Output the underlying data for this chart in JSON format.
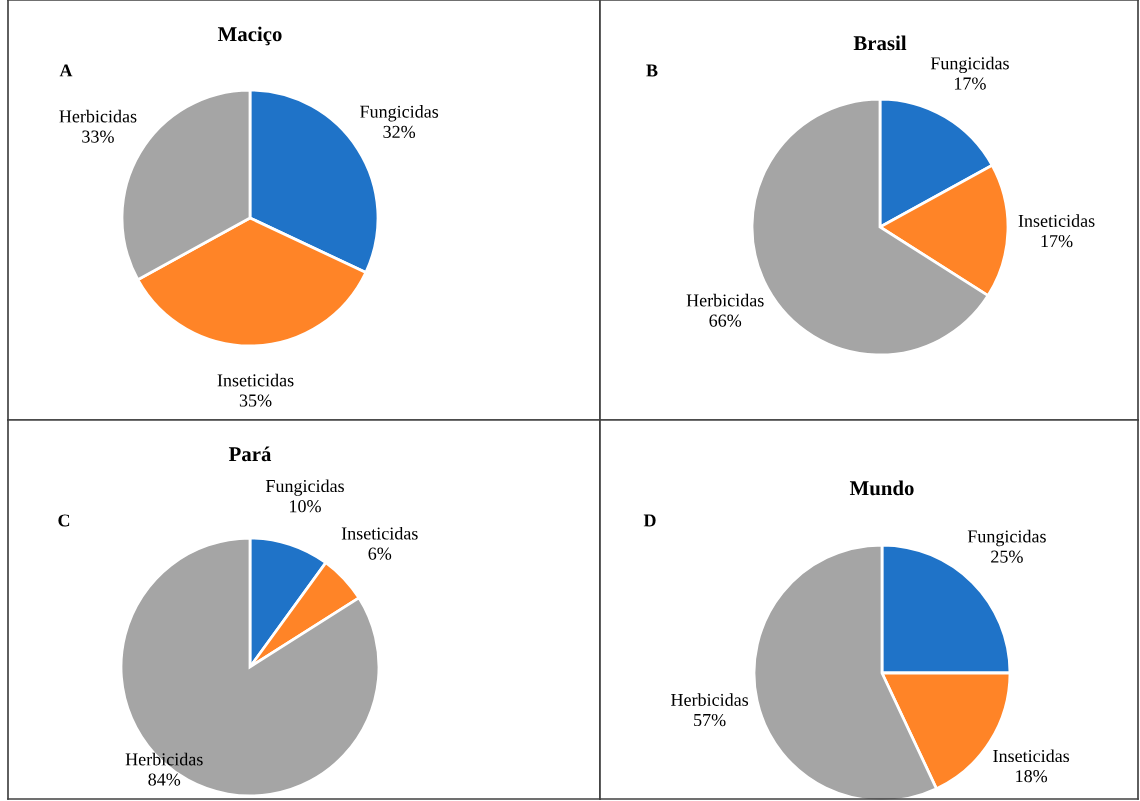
{
  "chart_data": [
    {
      "type": "pie",
      "title": "Maciço",
      "annotations": [
        "A"
      ],
      "categories": [
        "Fungicidas",
        "Inseticidas",
        "Herbicidas"
      ],
      "values": [
        32,
        35,
        33
      ],
      "value_labels": [
        "32%",
        "35%",
        "33%"
      ],
      "colors": [
        "#1f73c8",
        "#ff8427",
        "#a5a5a5"
      ]
    },
    {
      "type": "pie",
      "title": "Brasil",
      "annotations": [
        "B"
      ],
      "categories": [
        "Fungicidas",
        "Inseticidas",
        "Herbicidas"
      ],
      "values": [
        17,
        17,
        66
      ],
      "value_labels": [
        "17%",
        "17%",
        "66%"
      ],
      "colors": [
        "#1f73c8",
        "#ff8427",
        "#a5a5a5"
      ]
    },
    {
      "type": "pie",
      "title": "Pará",
      "annotations": [
        "C"
      ],
      "categories": [
        "Fungicidas",
        "Inseticidas",
        "Herbicidas"
      ],
      "values": [
        10,
        6,
        84
      ],
      "value_labels": [
        "10%",
        "6%",
        "84%"
      ],
      "colors": [
        "#1f73c8",
        "#ff8427",
        "#a5a5a5"
      ]
    },
    {
      "type": "pie",
      "title": "Mundo",
      "annotations": [
        "D"
      ],
      "categories": [
        "Fungicidas",
        "Inseticidas",
        "Herbicidas"
      ],
      "values": [
        25,
        18,
        57
      ],
      "value_labels": [
        "25%",
        "18%",
        "57%"
      ],
      "colors": [
        "#1f73c8",
        "#ff8427",
        "#a5a5a5"
      ]
    }
  ]
}
